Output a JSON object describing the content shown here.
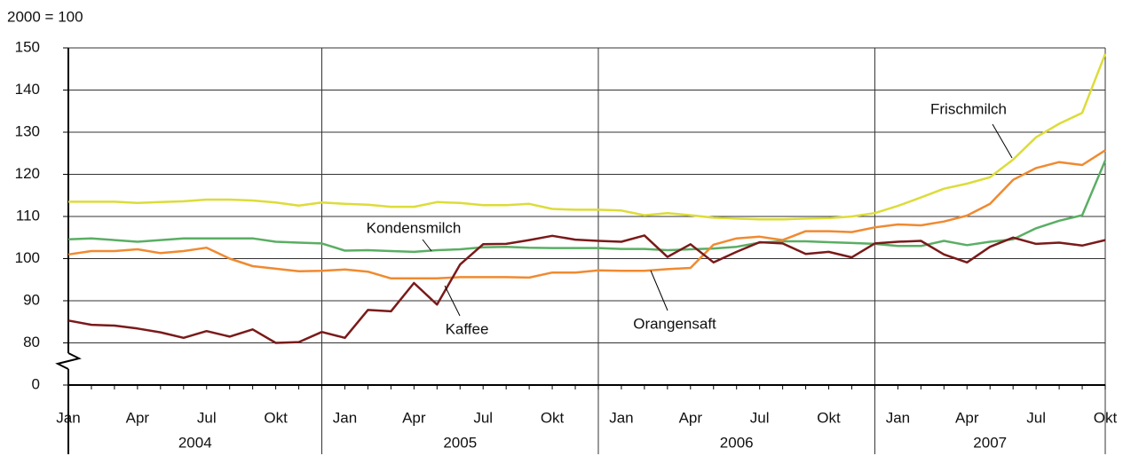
{
  "chart_data": {
    "type": "line",
    "y_label": "2000 = 100",
    "categories": [
      "Jan",
      null,
      null,
      "Apr",
      null,
      null,
      "Jul",
      null,
      null,
      "Okt",
      null,
      null,
      "Jan",
      null,
      null,
      "Apr",
      null,
      null,
      "Jul",
      null,
      null,
      "Okt",
      null,
      null,
      "Jan",
      null,
      null,
      "Apr",
      null,
      null,
      "Jul",
      null,
      null,
      "Okt",
      null,
      null,
      "Jan",
      null,
      null,
      "Apr",
      null,
      null,
      "Jul",
      null,
      null,
      "Okt"
    ],
    "year_labels": [
      "2004",
      "2005",
      "2006",
      "2007"
    ],
    "ylim": [
      0,
      150
    ],
    "ybreak": [
      0,
      80
    ],
    "yticks": [
      0,
      80,
      90,
      100,
      110,
      120,
      130,
      140,
      150
    ],
    "grid": true,
    "series": [
      {
        "name": "Frischmilch",
        "color": "#dcdc3a",
        "values": [
          113.5,
          113.5,
          113.5,
          113.2,
          113.4,
          113.6,
          114,
          114,
          113.8,
          113.3,
          112.6,
          113.3,
          113,
          112.8,
          112.3,
          112.3,
          113.4,
          113.2,
          112.7,
          112.7,
          113,
          111.8,
          111.6,
          111.6,
          111.4,
          110.3,
          110.8,
          110.3,
          109.7,
          109.5,
          109.3,
          109.3,
          109.5,
          109.6,
          110,
          110.8,
          112.5,
          114.5,
          116.6,
          117.8,
          119.3,
          123.5,
          128.8,
          132,
          134.6,
          148.6
        ]
      },
      {
        "name": "Kondensmilch",
        "color": "#5aae64",
        "values": [
          104.6,
          104.8,
          104.4,
          104,
          104.4,
          104.8,
          104.8,
          104.8,
          104.8,
          104,
          103.8,
          103.6,
          101.9,
          102,
          101.8,
          101.6,
          102,
          102.2,
          102.7,
          102.8,
          102.6,
          102.5,
          102.5,
          102.5,
          102.3,
          102.3,
          102,
          102.2,
          102.4,
          102.8,
          103.8,
          104.1,
          104.1,
          103.9,
          103.7,
          103.5,
          103,
          103,
          104.2,
          103.2,
          104,
          104.6,
          107.2,
          109,
          110.3,
          123.3
        ]
      },
      {
        "name": "Orangensaft",
        "color": "#f08a30",
        "values": [
          101,
          101.8,
          101.8,
          102.2,
          101.3,
          101.8,
          102.6,
          100,
          98.2,
          97.6,
          97,
          97.1,
          97.4,
          96.9,
          95.3,
          95.3,
          95.3,
          95.6,
          95.6,
          95.6,
          95.5,
          96.7,
          96.7,
          97.2,
          97.1,
          97.1,
          97.5,
          97.8,
          103.3,
          104.8,
          105.2,
          104.4,
          106.5,
          106.5,
          106.3,
          107.4,
          108.1,
          107.9,
          108.8,
          110.2,
          113,
          118.7,
          121.5,
          122.9,
          122.2,
          125.7
        ]
      },
      {
        "name": "Kaffee",
        "color": "#7a1a1a",
        "values": [
          85.3,
          84.3,
          84.1,
          83.4,
          82.5,
          81.2,
          82.8,
          81.5,
          83.2,
          80,
          80.2,
          82.6,
          81.2,
          87.8,
          87.5,
          94.2,
          89.1,
          98.6,
          103.4,
          103.5,
          104.4,
          105.4,
          104.5,
          104.2,
          104,
          105.5,
          100.4,
          103.4,
          99.1,
          101.6,
          103.9,
          103.6,
          101.1,
          101.6,
          100.3,
          103.6,
          104,
          104.2,
          101,
          99.1,
          102.8,
          105,
          103.5,
          103.8,
          103.1,
          104.4
        ]
      }
    ]
  }
}
